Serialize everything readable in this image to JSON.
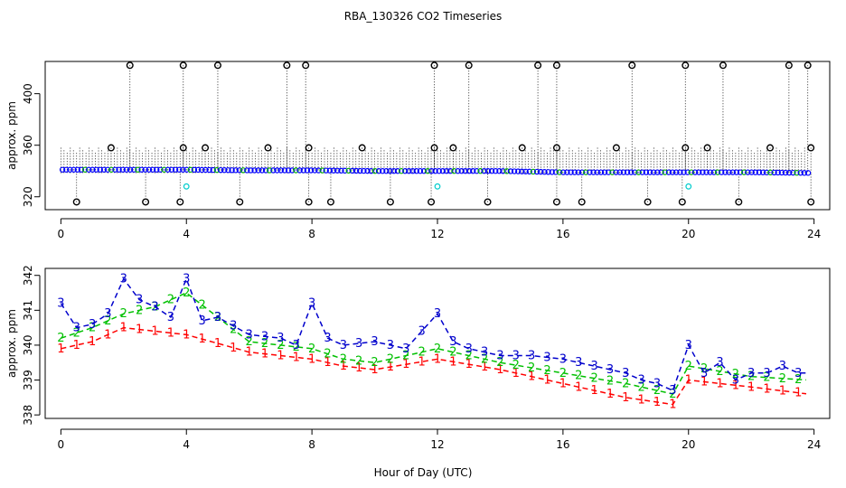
{
  "chart_data": {
    "title": "RBA_130326  CO2 Timeseries",
    "xlabel": "Hour of Day (UTC)",
    "xlim": [
      -0.5,
      24.5
    ],
    "xticks": [
      "0",
      "4",
      "8",
      "12",
      "16",
      "20",
      "24"
    ],
    "panels": [
      {
        "type": "scatter",
        "ylabel": "approx. ppm",
        "ylim": [
          310,
          425
        ],
        "yticks": [
          "320",
          "360",
          "400"
        ],
        "baseline": {
          "hours": [
            0.0,
            2.0,
            4.0,
            6.0,
            8.0,
            10.0,
            12.0,
            14.0,
            16.0,
            18.0,
            20.0,
            22.0,
            23.8
          ],
          "values": [
            341,
            341,
            341,
            340.5,
            340.5,
            340,
            340,
            340,
            339,
            339,
            339,
            339,
            338.5
          ],
          "color": "#0000ff"
        },
        "whiskers": {
          "low": 338,
          "high": 358,
          "step_hours": 0.1
        },
        "outlier_spikes_high": [
          2.2,
          3.9,
          5.0,
          7.2,
          7.8,
          11.9,
          13.0,
          15.2,
          15.8,
          18.2,
          19.9,
          21.1,
          23.2,
          23.8
        ],
        "outlier_values_high": [
          422,
          422,
          422,
          422,
          422,
          422,
          422,
          422,
          422,
          422,
          422,
          422,
          422,
          422
        ],
        "outliers_mid": {
          "hours": [
            1.6,
            3.9,
            4.6,
            6.6,
            7.9,
            9.6,
            11.9,
            12.5,
            14.7,
            15.8,
            17.7,
            19.9,
            20.6,
            22.6,
            23.9
          ],
          "values": [
            358,
            358,
            358,
            358,
            358,
            358,
            358,
            358,
            358,
            358,
            358,
            358,
            358,
            358,
            358
          ]
        },
        "outliers_low": {
          "hours": [
            0.5,
            2.7,
            3.8,
            5.7,
            7.9,
            8.6,
            10.5,
            11.8,
            13.6,
            15.8,
            16.6,
            18.7,
            19.8,
            21.6,
            23.9
          ],
          "values": [
            316,
            316,
            316,
            316,
            316,
            316,
            316,
            316,
            316,
            316,
            316,
            316,
            316,
            316,
            316
          ]
        },
        "cyan_points": {
          "hours": [
            4.0,
            12.0,
            20.0
          ],
          "values": [
            328,
            328,
            328
          ],
          "color": "#00cccc"
        }
      },
      {
        "type": "line",
        "ylabel": "approx. ppm",
        "ylim": [
          337.9,
          342.2
        ],
        "yticks": [
          "338",
          "339",
          "340",
          "341",
          "342"
        ],
        "series": [
          {
            "name": "1",
            "color": "#ff0000",
            "hours": [
              0.0,
              1.0,
              2.0,
              4.0,
              6.0,
              8.0,
              9.0,
              10.0,
              12.0,
              14.0,
              16.0,
              18.0,
              19.5,
              20.0,
              22.0,
              23.8
            ],
            "values": [
              339.9,
              340.1,
              340.5,
              340.3,
              339.8,
              339.6,
              339.4,
              339.3,
              339.6,
              339.3,
              338.9,
              338.5,
              338.3,
              339.0,
              338.8,
              338.6
            ]
          },
          {
            "name": "2",
            "color": "#00c000",
            "hours": [
              0.0,
              1.0,
              2.0,
              3.0,
              4.0,
              6.0,
              8.0,
              9.0,
              10.0,
              12.0,
              14.0,
              16.0,
              18.0,
              19.5,
              20.0,
              22.0,
              23.8
            ],
            "values": [
              340.2,
              340.5,
              340.9,
              341.1,
              341.5,
              340.1,
              339.9,
              339.6,
              339.5,
              339.9,
              339.5,
              339.2,
              338.9,
              338.6,
              339.4,
              339.1,
              339.0
            ]
          },
          {
            "name": "3",
            "color": "#0000cc",
            "hours": [
              0.0,
              0.5,
              1.0,
              1.5,
              2.0,
              2.5,
              3.0,
              3.5,
              4.0,
              4.5,
              5.0,
              6.0,
              7.0,
              7.5,
              8.0,
              8.5,
              9.0,
              10.0,
              11.0,
              12.0,
              12.5,
              13.0,
              14.0,
              15.0,
              16.0,
              17.0,
              18.0,
              18.5,
              19.0,
              19.5,
              20.0,
              20.5,
              21.0,
              21.5,
              22.0,
              22.5,
              23.0,
              23.5,
              23.8
            ],
            "values": [
              341.2,
              340.5,
              340.6,
              340.9,
              341.9,
              341.3,
              341.1,
              340.8,
              341.9,
              340.7,
              340.8,
              340.3,
              340.2,
              340.0,
              341.2,
              340.2,
              340.0,
              340.1,
              339.9,
              340.9,
              340.1,
              339.9,
              339.7,
              339.7,
              339.6,
              339.4,
              339.2,
              339.0,
              338.9,
              338.7,
              340.0,
              339.2,
              339.5,
              339.0,
              339.2,
              339.2,
              339.4,
              339.2,
              339.2
            ]
          }
        ]
      }
    ]
  }
}
